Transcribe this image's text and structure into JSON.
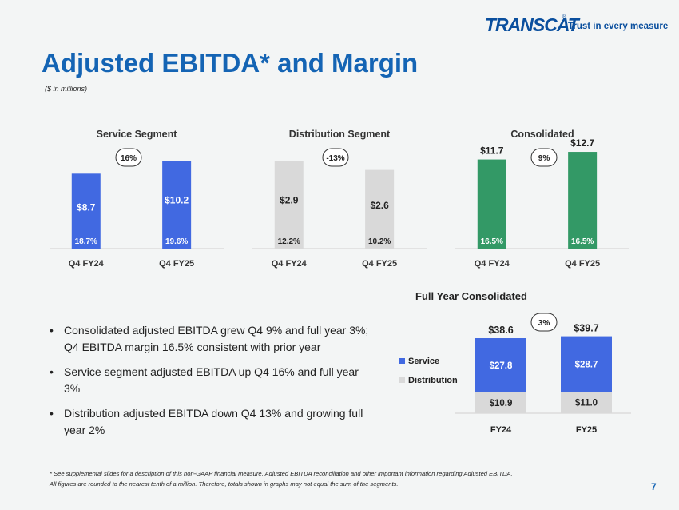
{
  "logo": {
    "word": "TRANSCAT",
    "reg": "®",
    "tagline": "Trust in every measure"
  },
  "title": "Adjusted EBITDA* and Margin",
  "subtitle": "($ in millions)",
  "colors": {
    "service": "#4169e1",
    "distribution": "#d9d9d9",
    "consolidated": "#339966",
    "title": "#1464b4"
  },
  "chart_data": [
    {
      "type": "bar",
      "title": "Service Segment",
      "categories": [
        "Q4 FY24",
        "Q4 FY25"
      ],
      "values": [
        8.7,
        10.2
      ],
      "value_labels": [
        "$8.7",
        "$10.2"
      ],
      "margin_labels": [
        "18.7%",
        "19.6%"
      ],
      "growth_badge": "16%",
      "ylim": [
        0,
        13
      ]
    },
    {
      "type": "bar",
      "title": "Distribution Segment",
      "categories": [
        "Q4 FY24",
        "Q4 FY25"
      ],
      "values": [
        2.9,
        2.6
      ],
      "value_labels": [
        "$2.9",
        "$2.6"
      ],
      "margin_labels": [
        "12.2%",
        "10.2%"
      ],
      "growth_badge": "-13%",
      "ylim": [
        0,
        3.7
      ]
    },
    {
      "type": "bar",
      "title": "Consolidated",
      "categories": [
        "Q4 FY24",
        "Q4 FY25"
      ],
      "values": [
        11.7,
        12.7
      ],
      "value_labels": [
        "$11.7",
        "$12.7"
      ],
      "margin_labels": [
        "16.5%",
        "16.5%"
      ],
      "growth_badge": "9%",
      "ylim": [
        0,
        14.7
      ]
    },
    {
      "type": "bar",
      "stacked": true,
      "title": "Full Year Consolidated",
      "categories": [
        "FY24",
        "FY25"
      ],
      "series": [
        {
          "name": "Distribution",
          "values": [
            10.9,
            11.0
          ],
          "labels": [
            "$10.9",
            "$11.0"
          ]
        },
        {
          "name": "Service",
          "values": [
            27.8,
            28.7
          ],
          "labels": [
            "$27.8",
            "$28.7"
          ]
        }
      ],
      "totals": [
        38.6,
        39.7
      ],
      "total_labels": [
        "$38.6",
        "$39.7"
      ],
      "growth_badge": "3%",
      "legend": [
        "Service",
        "Distribution"
      ],
      "ylim": [
        0,
        42
      ]
    }
  ],
  "bullets": [
    "Consolidated adjusted EBITDA grew Q4 9% and full year 3%; Q4 EBITDA margin 16.5% consistent with prior year",
    "Service segment adjusted EBITDA up Q4 16% and full year 3%",
    "Distribution adjusted EBITDA down Q4 13% and growing full year 2%"
  ],
  "footnote": [
    "* See supplemental slides for a description of this non-GAAP financial measure, Adjusted EBITDA reconciliation and other important information regarding Adjusted EBITDA.",
    "All figures are rounded to the nearest tenth of a million. Therefore, totals shown in graphs may not equal the sum of the segments."
  ],
  "page_number": "7"
}
